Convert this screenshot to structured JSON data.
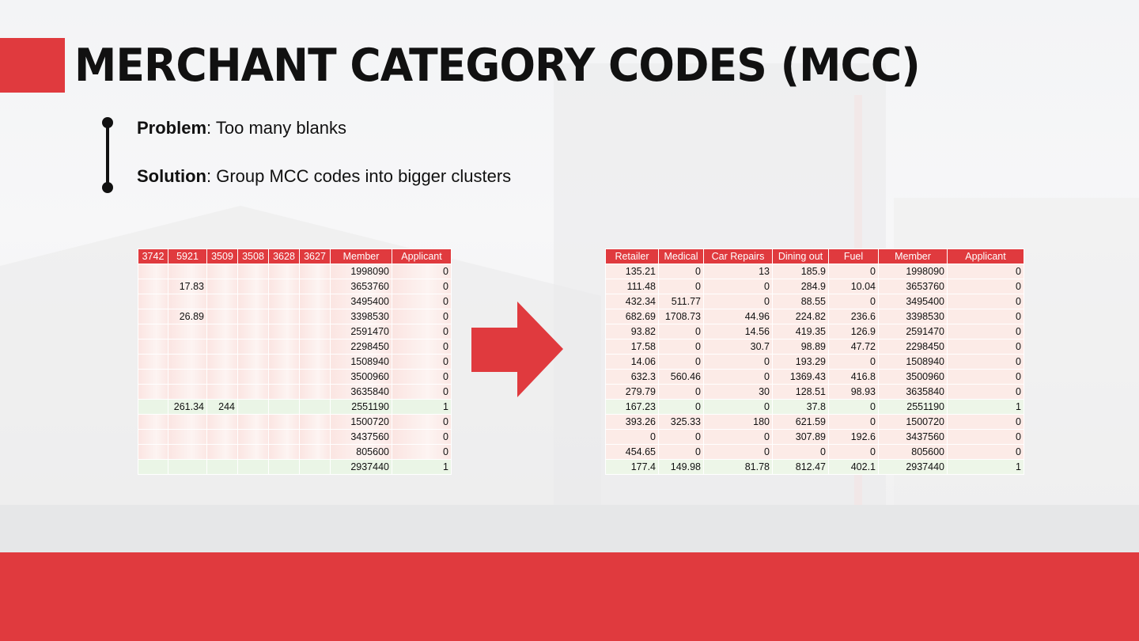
{
  "title": "MERCHANT CATEGORY CODES (MCC)",
  "bullets": {
    "problem_label": "Problem",
    "problem_text": ": Too many blanks",
    "solution_label": "Solution",
    "solution_text": ": Group MCC codes into bigger clusters"
  },
  "left_table": {
    "headers": [
      "3742",
      "5921",
      "3509",
      "3508",
      "3628",
      "3627",
      "Member",
      "Applicant"
    ],
    "rows": [
      [
        "",
        "",
        "",
        "",
        "",
        "",
        "1998090",
        "0"
      ],
      [
        "",
        "17.83",
        "",
        "",
        "",
        "",
        "3653760",
        "0"
      ],
      [
        "",
        "",
        "",
        "",
        "",
        "",
        "3495400",
        "0"
      ],
      [
        "",
        "26.89",
        "",
        "",
        "",
        "",
        "3398530",
        "0"
      ],
      [
        "",
        "",
        "",
        "",
        "",
        "",
        "2591470",
        "0"
      ],
      [
        "",
        "",
        "",
        "",
        "",
        "",
        "2298450",
        "0"
      ],
      [
        "",
        "",
        "",
        "",
        "",
        "",
        "1508940",
        "0"
      ],
      [
        "",
        "",
        "",
        "",
        "",
        "",
        "3500960",
        "0"
      ],
      [
        "",
        "",
        "",
        "",
        "",
        "",
        "3635840",
        "0"
      ],
      [
        "",
        "261.34",
        "244",
        "",
        "",
        "",
        "2551190",
        "1"
      ],
      [
        "",
        "",
        "",
        "",
        "",
        "",
        "1500720",
        "0"
      ],
      [
        "",
        "",
        "",
        "",
        "",
        "",
        "3437560",
        "0"
      ],
      [
        "",
        "",
        "",
        "",
        "",
        "",
        "805600",
        "0"
      ],
      [
        "",
        "",
        "",
        "",
        "",
        "",
        "2937440",
        "1"
      ]
    ]
  },
  "right_table": {
    "headers": [
      "Retailer",
      "Medical",
      "Car Repairs",
      "Dining out",
      "Fuel",
      "Member",
      "Applicant"
    ],
    "rows": [
      [
        "135.21",
        "0",
        "13",
        "185.9",
        "0",
        "1998090",
        "0"
      ],
      [
        "111.48",
        "0",
        "0",
        "284.9",
        "10.04",
        "3653760",
        "0"
      ],
      [
        "432.34",
        "511.77",
        "0",
        "88.55",
        "0",
        "3495400",
        "0"
      ],
      [
        "682.69",
        "1708.73",
        "44.96",
        "224.82",
        "236.6",
        "3398530",
        "0"
      ],
      [
        "93.82",
        "0",
        "14.56",
        "419.35",
        "126.9",
        "2591470",
        "0"
      ],
      [
        "17.58",
        "0",
        "30.7",
        "98.89",
        "47.72",
        "2298450",
        "0"
      ],
      [
        "14.06",
        "0",
        "0",
        "193.29",
        "0",
        "1508940",
        "0"
      ],
      [
        "632.3",
        "560.46",
        "0",
        "1369.43",
        "416.8",
        "3500960",
        "0"
      ],
      [
        "279.79",
        "0",
        "30",
        "128.51",
        "98.93",
        "3635840",
        "0"
      ],
      [
        "167.23",
        "0",
        "0",
        "37.8",
        "0",
        "2551190",
        "1"
      ],
      [
        "393.26",
        "325.33",
        "180",
        "621.59",
        "0",
        "1500720",
        "0"
      ],
      [
        "0",
        "0",
        "0",
        "307.89",
        "192.6",
        "3437560",
        "0"
      ],
      [
        "454.65",
        "0",
        "0",
        "0",
        "0",
        "805600",
        "0"
      ],
      [
        "177.4",
        "149.98",
        "81.78",
        "812.47",
        "402.1",
        "2937440",
        "1"
      ]
    ]
  },
  "colors": {
    "accent": "#e03a3e",
    "row_zero": "#fcebe7",
    "row_one": "#edf6e8",
    "band": "#e6e7e8"
  },
  "icons": {
    "arrow": "right-arrow-icon"
  }
}
